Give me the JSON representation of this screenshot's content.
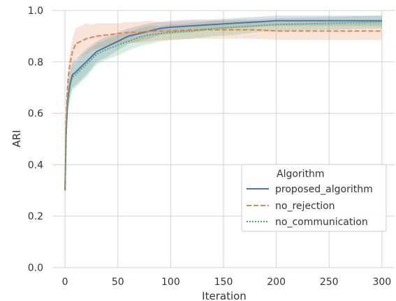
{
  "chart_data": {
    "type": "line",
    "xlabel": "Iteration",
    "ylabel": "ARI",
    "xlim": [
      -12,
      312
    ],
    "ylim": [
      0.0,
      1.0
    ],
    "xticks": [
      0,
      50,
      100,
      150,
      200,
      250,
      300
    ],
    "yticks": [
      0.0,
      0.2,
      0.4,
      0.6,
      0.8,
      1.0
    ],
    "xtick_labels": [
      "0",
      "50",
      "100",
      "150",
      "200",
      "250",
      "300"
    ],
    "ytick_labels": [
      "0.0",
      "0.2",
      "0.4",
      "0.6",
      "0.8",
      "1.0"
    ],
    "grid": true,
    "legend": {
      "title": "Algorithm",
      "placement": "lower-right"
    },
    "series": [
      {
        "name": "proposed_algorithm",
        "color": "#4c72b0",
        "style": "solid",
        "x": [
          0,
          1,
          2,
          3,
          5,
          7,
          10,
          15,
          20,
          25,
          30,
          40,
          50,
          60,
          70,
          80,
          90,
          100,
          120,
          140,
          160,
          180,
          200,
          250,
          300
        ],
        "y": [
          0.3,
          0.52,
          0.62,
          0.67,
          0.72,
          0.75,
          0.76,
          0.78,
          0.8,
          0.82,
          0.84,
          0.86,
          0.88,
          0.9,
          0.91,
          0.92,
          0.93,
          0.935,
          0.94,
          0.945,
          0.95,
          0.955,
          0.96,
          0.96,
          0.96
        ],
        "band": [
          0.03,
          0.05,
          0.05,
          0.05,
          0.05,
          0.05,
          0.05,
          0.05,
          0.05,
          0.045,
          0.04,
          0.04,
          0.035,
          0.03,
          0.03,
          0.03,
          0.025,
          0.025,
          0.025,
          0.02,
          0.02,
          0.02,
          0.02,
          0.02,
          0.02
        ]
      },
      {
        "name": "no_rejection",
        "color": "#dd8452",
        "style": "dashed",
        "x": [
          0,
          1,
          2,
          3,
          5,
          7,
          10,
          15,
          20,
          25,
          30,
          40,
          50,
          60,
          70,
          80,
          90,
          100,
          120,
          140,
          160,
          180,
          200,
          250,
          300
        ],
        "y": [
          0.31,
          0.58,
          0.68,
          0.74,
          0.8,
          0.84,
          0.87,
          0.88,
          0.89,
          0.895,
          0.9,
          0.905,
          0.91,
          0.915,
          0.915,
          0.92,
          0.92,
          0.92,
          0.925,
          0.925,
          0.925,
          0.925,
          0.92,
          0.92,
          0.92
        ],
        "band": [
          0.03,
          0.05,
          0.05,
          0.05,
          0.05,
          0.05,
          0.06,
          0.06,
          0.06,
          0.05,
          0.05,
          0.045,
          0.04,
          0.04,
          0.04,
          0.04,
          0.035,
          0.035,
          0.035,
          0.035,
          0.035,
          0.035,
          0.035,
          0.035,
          0.035
        ]
      },
      {
        "name": "no_communication",
        "color": "#55a868",
        "style": "dotted",
        "x": [
          0,
          1,
          2,
          3,
          5,
          7,
          10,
          15,
          20,
          25,
          30,
          40,
          50,
          60,
          70,
          80,
          90,
          100,
          120,
          140,
          160,
          180,
          200,
          250,
          300
        ],
        "y": [
          0.3,
          0.52,
          0.61,
          0.66,
          0.71,
          0.74,
          0.75,
          0.77,
          0.79,
          0.81,
          0.83,
          0.85,
          0.865,
          0.88,
          0.895,
          0.905,
          0.91,
          0.915,
          0.92,
          0.93,
          0.935,
          0.94,
          0.945,
          0.95,
          0.955
        ],
        "band": [
          0.03,
          0.05,
          0.05,
          0.05,
          0.05,
          0.05,
          0.05,
          0.05,
          0.05,
          0.045,
          0.04,
          0.04,
          0.04,
          0.035,
          0.035,
          0.035,
          0.03,
          0.03,
          0.03,
          0.03,
          0.03,
          0.025,
          0.025,
          0.025,
          0.025
        ]
      }
    ]
  }
}
